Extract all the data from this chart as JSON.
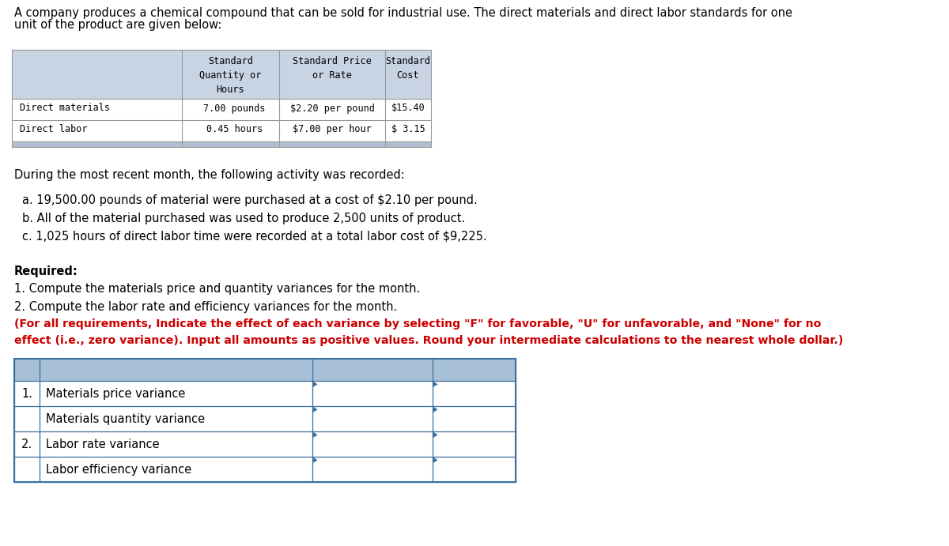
{
  "title_line1": "A company produces a chemical compound that can be sold for industrial use. The direct materials and direct labor standards for one",
  "title_line2": "unit of the product are given below:",
  "t1_header_bg": "#c8d4e3",
  "t1_border_color": "#999999",
  "t1_strip_color": "#b0bfcf",
  "t1_col1_label": "",
  "t1_col2_h1": "Standard",
  "t1_col2_h2": "Quantity or",
  "t1_col2_h3": "Hours",
  "t1_col3_h1": "Standard Price",
  "t1_col3_h2": "or Rate",
  "t1_col4_h1": "Standard",
  "t1_col4_h2": "Cost",
  "t1_row1": [
    "Direct materials",
    "7.00 pounds",
    "$2.20 per pound",
    "$15.40"
  ],
  "t1_row2": [
    "Direct labor",
    "0.45 hours",
    "$7.00 per hour",
    "$ 3.15"
  ],
  "activity_intro": "During the most recent month, the following activity was recorded:",
  "activity_a": "a. 19,500.00 pounds of material were purchased at a cost of $2.10 per pound.",
  "activity_b": "b. All of the material purchased was used to produce 2,500 units of product.",
  "activity_c": "c. 1,025 hours of direct labor time were recorded at a total labor cost of $9,225.",
  "required_bold": "Required:",
  "req1": "1. Compute the materials price and quantity variances for the month.",
  "req2": "2. Compute the labor rate and efficiency variances for the month.",
  "note_line1": "(For all requirements, Indicate the effect of each variance by selecting \"F\" for favorable, \"U\" for unfavorable, and \"None\" for no",
  "note_line2": "effect (i.e., zero variance). Input all amounts as positive values. Round your intermediate calculations to the nearest whole dollar.)",
  "t2_row_labels": [
    "1.",
    "",
    "2.",
    ""
  ],
  "t2_row_texts": [
    "Materials price variance",
    "Materials quantity variance",
    "Labor rate variance",
    "Labor efficiency variance"
  ],
  "t2_header_bg": "#a8bfd8",
  "t2_border": "#3a6fa0",
  "t2_white": "#ffffff",
  "note_color": "#cc0000",
  "bg": "#ffffff",
  "mono": "DejaVu Sans Mono",
  "sans": "DejaVu Sans"
}
